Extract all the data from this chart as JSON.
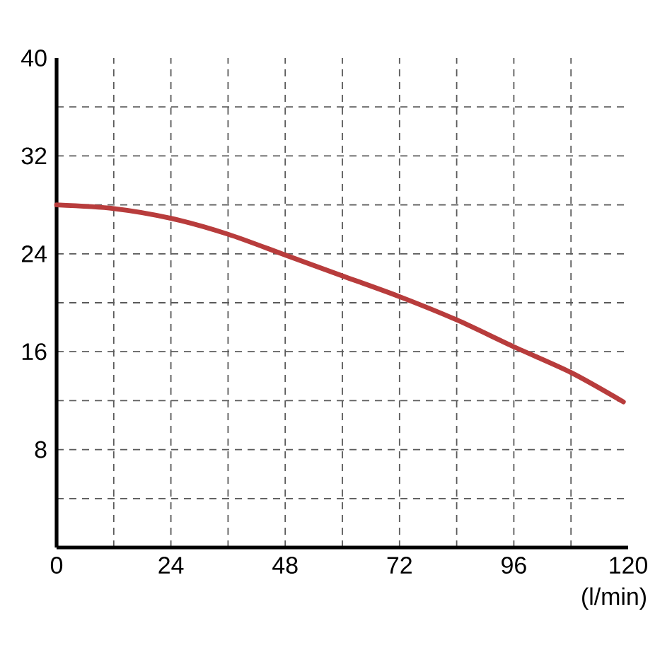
{
  "chart_data": {
    "type": "line",
    "xlabel": "(l/min)",
    "x": [
      0,
      12,
      24,
      36,
      48,
      60,
      72,
      84,
      96,
      108,
      119
    ],
    "values": [
      28,
      27.7,
      26.9,
      25.6,
      23.9,
      22.2,
      20.5,
      18.6,
      16.4,
      14.3,
      11.9
    ],
    "color": "#b83c3c",
    "marker": "none",
    "line_style": "solid",
    "grid": true,
    "xlim": [
      0,
      120
    ],
    "ylim": [
      0,
      40
    ],
    "xticks": [
      0,
      {
        "value": 12,
        "label": null
      },
      24,
      {
        "value": 36,
        "label": null
      },
      48,
      {
        "value": 60,
        "label": null
      },
      72,
      {
        "value": 84,
        "label": null
      },
      96,
      {
        "value": 108,
        "label": null
      },
      120
    ],
    "yticks": [
      {
        "value": 0,
        "label": null
      },
      {
        "value": 4,
        "label": null
      },
      8,
      {
        "value": 12,
        "label": null
      },
      16,
      {
        "value": 20,
        "label": null
      },
      24,
      {
        "value": 28,
        "label": null
      },
      32,
      {
        "value": 36,
        "label": null
      },
      40
    ]
  }
}
